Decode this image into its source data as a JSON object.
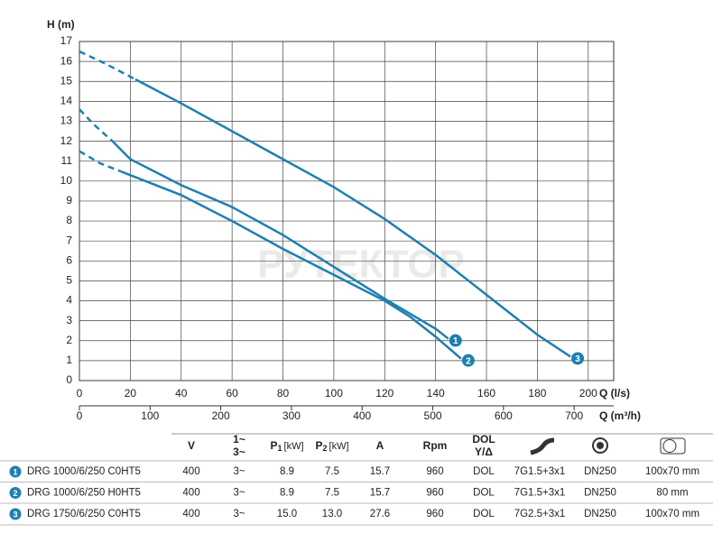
{
  "chart_data": {
    "type": "line",
    "ylabel": "H (m)",
    "xlabel": "Q (l/s)",
    "x2label": "Q (m³/h)",
    "watermark": "РУТЕКТОР",
    "xlim": [
      0,
      210
    ],
    "xticks": [
      0,
      20,
      40,
      60,
      80,
      100,
      120,
      140,
      160,
      180,
      200
    ],
    "x2lim": [
      0,
      756
    ],
    "x2ticks": [
      0,
      100,
      200,
      300,
      400,
      500,
      600,
      700
    ],
    "ylim": [
      0,
      17
    ],
    "yticks": [
      0,
      1,
      2,
      3,
      4,
      5,
      6,
      7,
      8,
      9,
      10,
      11,
      12,
      13,
      14,
      15,
      16,
      17
    ],
    "grid": true,
    "color": "#1f7fb0",
    "series": [
      {
        "label": "1",
        "dashed_x": [
          0,
          6,
          13
        ],
        "dashed_values": [
          13.6,
          12.8,
          12.0
        ],
        "x": [
          13,
          20,
          40,
          60,
          80,
          100,
          120,
          140,
          145
        ],
        "values": [
          12.0,
          11.1,
          9.8,
          8.7,
          7.3,
          5.7,
          4.1,
          2.6,
          2.1
        ]
      },
      {
        "label": "2",
        "dashed_x": [
          0,
          8,
          16
        ],
        "dashed_values": [
          11.5,
          10.9,
          10.5
        ],
        "x": [
          16,
          20,
          40,
          60,
          80,
          100,
          120,
          130,
          140,
          150
        ],
        "values": [
          10.5,
          10.3,
          9.3,
          8.0,
          6.6,
          5.3,
          4.0,
          3.2,
          2.2,
          1.1
        ]
      },
      {
        "label": "3",
        "dashed_x": [
          0,
          10,
          22
        ],
        "dashed_values": [
          16.5,
          15.9,
          15.1
        ],
        "x": [
          22,
          40,
          60,
          80,
          100,
          120,
          140,
          160,
          180,
          193
        ],
        "values": [
          15.1,
          13.9,
          12.5,
          11.1,
          9.7,
          8.1,
          6.3,
          4.3,
          2.3,
          1.2
        ]
      }
    ]
  },
  "table": {
    "header": [
      "V",
      {
        "lines": [
          "1~",
          "3~"
        ]
      },
      {
        "main": "P",
        "sub": "1",
        "unit": "[kW]"
      },
      {
        "main": "P",
        "sub": "2",
        "unit": "[kW]"
      },
      "A",
      "Rpm",
      {
        "lines": [
          "DOL",
          "Y/Δ"
        ]
      }
    ],
    "rows": [
      {
        "id": "1",
        "name": "DRG 1000/6/250 C0HT5",
        "cells": [
          "400",
          "3~",
          "8.9",
          "7.5",
          "15.7",
          "960",
          "DOL",
          "7G1.5+3x1",
          "DN250",
          "100x70 mm"
        ]
      },
      {
        "id": "2",
        "name": "DRG 1000/6/250 H0HT5",
        "cells": [
          "400",
          "3~",
          "8.9",
          "7.5",
          "15.7",
          "960",
          "DOL",
          "7G1.5+3x1",
          "DN250",
          "80 mm"
        ]
      },
      {
        "id": "3",
        "name": "DRG 1750/6/250 C0HT5",
        "cells": [
          "400",
          "3~",
          "15.0",
          "13.0",
          "27.6",
          "960",
          "DOL",
          "7G2.5+3x1",
          "DN250",
          "100x70 mm"
        ]
      }
    ]
  }
}
